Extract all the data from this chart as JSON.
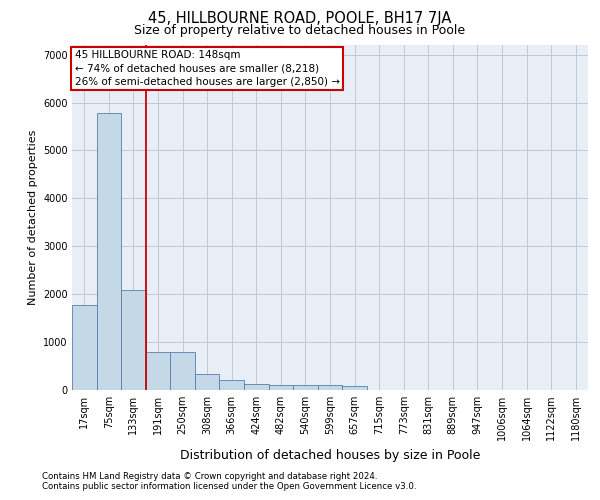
{
  "title1": "45, HILLBOURNE ROAD, POOLE, BH17 7JA",
  "title2": "Size of property relative to detached houses in Poole",
  "xlabel": "Distribution of detached houses by size in Poole",
  "ylabel": "Number of detached properties",
  "footnote1": "Contains HM Land Registry data © Crown copyright and database right 2024.",
  "footnote2": "Contains public sector information licensed under the Open Government Licence v3.0.",
  "bin_labels": [
    "17sqm",
    "75sqm",
    "133sqm",
    "191sqm",
    "250sqm",
    "308sqm",
    "366sqm",
    "424sqm",
    "482sqm",
    "540sqm",
    "599sqm",
    "657sqm",
    "715sqm",
    "773sqm",
    "831sqm",
    "889sqm",
    "947sqm",
    "1006sqm",
    "1064sqm",
    "1122sqm",
    "1180sqm"
  ],
  "bar_values": [
    1780,
    5780,
    2090,
    800,
    800,
    340,
    200,
    130,
    110,
    100,
    100,
    80,
    0,
    0,
    0,
    0,
    0,
    0,
    0,
    0,
    0
  ],
  "bar_color": "#c5d8e8",
  "bar_edge_color": "#5580aa",
  "grid_color": "#c0c8d8",
  "background_color": "#e8eef5",
  "annotation_line_color": "#cc0000",
  "annotation_box_color": "#cc0000",
  "annotation_text_line1": "45 HILLBOURNE ROAD: 148sqm",
  "annotation_text_line2": "← 74% of detached houses are smaller (8,218)",
  "annotation_text_line3": "26% of semi-detached houses are larger (2,850) →",
  "ylim": [
    0,
    7200
  ],
  "yticks": [
    0,
    1000,
    2000,
    3000,
    4000,
    5000,
    6000,
    7000
  ],
  "title1_fontsize": 10.5,
  "title2_fontsize": 9,
  "ylabel_fontsize": 8,
  "xlabel_fontsize": 9,
  "tick_fontsize": 7,
  "annotation_fontsize": 7.5,
  "footnote_fontsize": 6.2
}
